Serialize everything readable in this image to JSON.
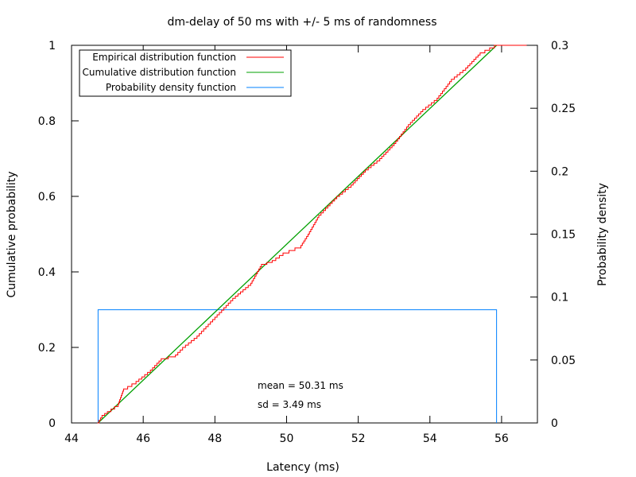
{
  "chart_data": {
    "type": "line",
    "title": "dm-delay of 50 ms with +/- 5 ms of randomness",
    "xlabel": "Latency (ms)",
    "ylabel": "Cumulative probability",
    "y2label": "Probability density",
    "xlim": [
      44,
      57
    ],
    "ylim": [
      0,
      1
    ],
    "y2lim": [
      0,
      0.3
    ],
    "xticks": [
      "44",
      "46",
      "48",
      "50",
      "52",
      "54",
      "56"
    ],
    "yticks": [
      "0",
      "0.2",
      "0.4",
      "0.6",
      "0.8",
      "1"
    ],
    "y2ticks": [
      "0",
      "0.05",
      "0.1",
      "0.15",
      "0.2",
      "0.25",
      "0.3"
    ],
    "legend_position": "top-left",
    "grid": false,
    "series": [
      {
        "name": "Empirical distribution function",
        "color": "#ff0000",
        "kind": "ecdf-step",
        "points": [
          [
            44.72,
            0
          ],
          [
            44.85,
            0.02
          ],
          [
            45.0,
            0.03
          ],
          [
            45.3,
            0.05
          ],
          [
            45.45,
            0.09
          ],
          [
            45.8,
            0.11
          ],
          [
            46.2,
            0.14
          ],
          [
            46.5,
            0.17
          ],
          [
            46.9,
            0.18
          ],
          [
            47.1,
            0.2
          ],
          [
            47.5,
            0.23
          ],
          [
            48.0,
            0.28
          ],
          [
            48.5,
            0.33
          ],
          [
            49.0,
            0.37
          ],
          [
            49.3,
            0.42
          ],
          [
            49.6,
            0.43
          ],
          [
            49.9,
            0.45
          ],
          [
            50.4,
            0.47
          ],
          [
            50.6,
            0.5
          ],
          [
            50.9,
            0.55
          ],
          [
            51.4,
            0.6
          ],
          [
            51.8,
            0.63
          ],
          [
            52.2,
            0.67
          ],
          [
            52.6,
            0.7
          ],
          [
            53.0,
            0.74
          ],
          [
            53.4,
            0.79
          ],
          [
            53.8,
            0.83
          ],
          [
            54.2,
            0.86
          ],
          [
            54.6,
            0.91
          ],
          [
            55.0,
            0.94
          ],
          [
            55.4,
            0.98
          ],
          [
            55.8,
            1.0
          ],
          [
            56.7,
            1.0
          ]
        ]
      },
      {
        "name": "Cumulative distribution function",
        "color": "#00a000",
        "kind": "uniform-cdf",
        "min": 44.74,
        "max": 55.86
      },
      {
        "name": "Probability density function",
        "color": "#0080ff",
        "kind": "uniform-pdf",
        "min": 44.74,
        "max": 55.86,
        "density": 0.0899
      }
    ],
    "annotations": [
      "mean = 50.31 ms",
      "sd = 3.49 ms"
    ]
  }
}
